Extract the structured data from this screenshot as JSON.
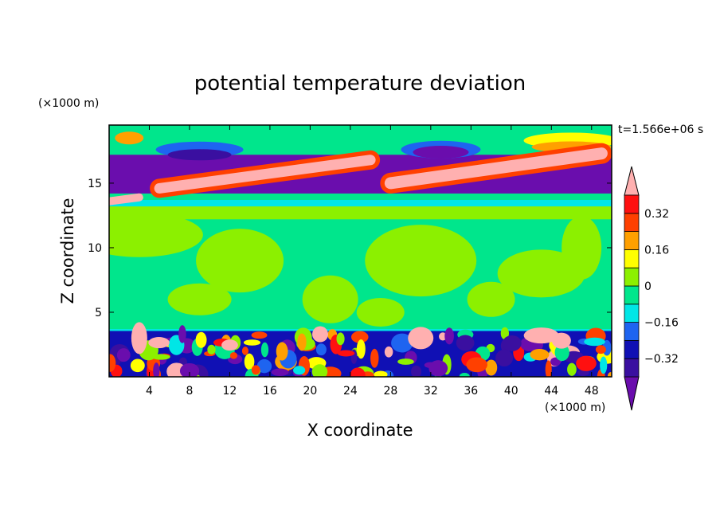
{
  "chart_data": {
    "type": "heatmap",
    "title": "potential temperature deviation",
    "xlabel": "X coordinate",
    "ylabel": "Z coordinate",
    "x_unit": "(×1000 m)",
    "y_unit": "(×1000 m)",
    "time_label": "t=1.566e+06 s",
    "xlim": [
      0,
      50
    ],
    "ylim": [
      0,
      19.5
    ],
    "x_ticks": [
      "4",
      "8",
      "12",
      "16",
      "20",
      "24",
      "28",
      "32",
      "36",
      "40",
      "44",
      "48"
    ],
    "y_ticks": [
      "5",
      "10",
      "15"
    ],
    "colorbar": {
      "levels": [
        -0.4,
        -0.32,
        -0.24,
        -0.16,
        -0.08,
        0,
        0.08,
        0.16,
        0.24,
        0.32,
        0.4
      ],
      "tick_labels": [
        "−0.32",
        "−0.16",
        "0",
        "0.16",
        "0.32"
      ],
      "colors": [
        "#6a0dad",
        "#3a0fa0",
        "#1010b4",
        "#1e64f0",
        "#00e6e6",
        "#00e68c",
        "#8cf000",
        "#ffff00",
        "#ffa000",
        "#ff4000",
        "#ff1010",
        "#ffb0b0"
      ],
      "extend": "both"
    },
    "layers": [
      {
        "z_range": [
          0,
          3.6
        ],
        "description_values": "mixed -0.4 to 0.4"
      },
      {
        "z_range": [
          3.6,
          13
        ],
        "dominant_values": [
          0,
          0.08
        ]
      },
      {
        "z_range": [
          13,
          19.5
        ],
        "dominant_values": [
          -0.4,
          0.4
        ]
      }
    ]
  }
}
